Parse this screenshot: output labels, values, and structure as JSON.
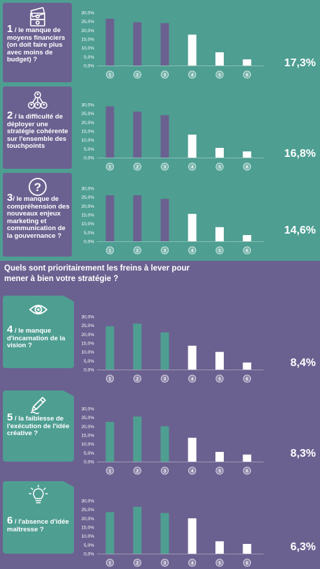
{
  "question": "Quels sont prioritairement les freins à lever pour mener à bien votre stratégie ?",
  "colors": {
    "teal": "#4e9e92",
    "purple": "#6b6190",
    "white": "#ffffff"
  },
  "panels": [
    {
      "icon": "money-stack-icon",
      "num": "1",
      "label": " / le manque de moyens financiers (on doit faire plus avec moins de budget) ?",
      "pct": "17,3%",
      "chart_data": {
        "type": "bar",
        "categories": [
          "1",
          "2",
          "3",
          "4",
          "5",
          "6"
        ],
        "values": [
          26.5,
          24.5,
          24.0,
          17.5,
          7.5,
          3.5
        ],
        "yticks": [
          "0,0%",
          "5,0%",
          "10,0%",
          "15,0%",
          "20,0%",
          "25,0%",
          "30,0%"
        ],
        "ylim": [
          0,
          30
        ]
      }
    },
    {
      "icon": "network-people-icon",
      "num": "2",
      "label": " / la difficulté de déployer une stratégie cohérente sur l'ensemble des touchpoints",
      "pct": "16,8%",
      "chart_data": {
        "type": "bar",
        "categories": [
          "1",
          "2",
          "3",
          "4",
          "5",
          "6"
        ],
        "values": [
          29.0,
          26.0,
          24.0,
          13.0,
          5.5,
          3.5
        ],
        "yticks": [
          "0,0%",
          "5,0%",
          "10,0%",
          "15,0%",
          "20,0%",
          "25,0%",
          "30,0%"
        ],
        "ylim": [
          0,
          30
        ]
      }
    },
    {
      "icon": "question-mark-icon",
      "num": "3",
      "label": "/ le manque de compréhension des nouveaux enjeux marketing et communication de la gouvernance ?",
      "pct": "14,6%",
      "chart_data": {
        "type": "bar",
        "categories": [
          "1",
          "2",
          "3",
          "4",
          "5",
          "6"
        ],
        "values": [
          26.0,
          26.0,
          24.0,
          15.5,
          8.0,
          3.5
        ],
        "yticks": [
          "0,0%",
          "5,0%",
          "10,0%",
          "15,0%",
          "20,0%",
          "25,0%",
          "30,0%"
        ],
        "ylim": [
          0,
          30
        ]
      }
    },
    {
      "icon": "eye-icon",
      "num": "4",
      "label": " / le manque d'incarnation de la vision ?",
      "pct": "8,4%",
      "chart_data": {
        "type": "bar",
        "categories": [
          "1",
          "2",
          "3",
          "4",
          "5",
          "6"
        ],
        "values": [
          24.5,
          26.0,
          21.0,
          13.5,
          10.0,
          4.0
        ],
        "yticks": [
          "0,0%",
          "5,0%",
          "10,0%",
          "15,0%",
          "20,0%",
          "25,0%",
          "30,0%"
        ],
        "ylim": [
          0,
          30
        ]
      }
    },
    {
      "icon": "pencil-icon",
      "num": "5",
      "label": " / la faiblesse de l'exécution de l'idée créative ?",
      "pct": "8,3%",
      "chart_data": {
        "type": "bar",
        "categories": [
          "1",
          "2",
          "3",
          "4",
          "5",
          "6"
        ],
        "values": [
          22.5,
          25.5,
          20.0,
          13.5,
          5.5,
          4.0
        ],
        "yticks": [
          "0,0%",
          "5,0%",
          "10,0%",
          "15,0%",
          "20,0%",
          "25,0%",
          "30,0%"
        ],
        "ylim": [
          0,
          30
        ]
      }
    },
    {
      "icon": "lightbulb-icon",
      "num": "6",
      "label": " / l'absence d'idée maîtresse ?",
      "pct": "6,3%",
      "chart_data": {
        "type": "bar",
        "categories": [
          "1",
          "2",
          "3",
          "4",
          "5",
          "6"
        ],
        "values": [
          23.5,
          26.5,
          23.0,
          20.0,
          7.0,
          5.5
        ],
        "yticks": [
          "0,0%",
          "5,0%",
          "10,0%",
          "15,0%",
          "20,0%",
          "25,0%",
          "30,0%"
        ],
        "ylim": [
          0,
          30
        ]
      }
    }
  ]
}
